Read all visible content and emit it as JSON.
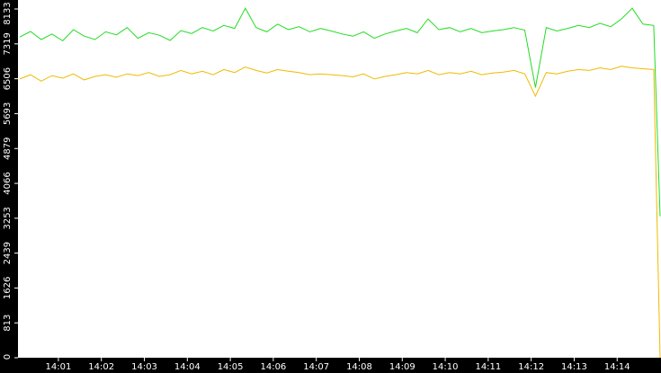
{
  "chart_data": {
    "type": "line",
    "x": [
      0.1,
      0.35,
      0.6,
      0.85,
      1.1,
      1.35,
      1.6,
      1.85,
      2.1,
      2.35,
      2.6,
      2.85,
      3.1,
      3.35,
      3.6,
      3.85,
      4.1,
      4.35,
      4.6,
      4.85,
      5.1,
      5.35,
      5.6,
      5.85,
      6.1,
      6.35,
      6.6,
      6.85,
      7.1,
      7.35,
      7.6,
      7.85,
      8.1,
      8.35,
      8.6,
      8.85,
      9.1,
      9.35,
      9.6,
      9.85,
      10.1,
      10.35,
      10.6,
      10.85,
      11.1,
      11.35,
      11.6,
      11.85,
      12.1,
      12.35,
      12.6,
      12.85,
      13.1,
      13.35,
      13.6,
      13.85,
      14.1,
      14.35,
      14.6,
      14.85,
      15.0
    ],
    "series": [
      {
        "color": "#22dd22",
        "values": [
          7480,
          7610,
          7420,
          7550,
          7390,
          7650,
          7500,
          7420,
          7600,
          7530,
          7700,
          7450,
          7580,
          7520,
          7400,
          7630,
          7560,
          7700,
          7620,
          7750,
          7680,
          8150,
          7700,
          7600,
          7780,
          7650,
          7720,
          7600,
          7680,
          7620,
          7550,
          7500,
          7600,
          7450,
          7550,
          7620,
          7680,
          7580,
          7900,
          7650,
          7700,
          7600,
          7680,
          7580,
          7620,
          7650,
          7700,
          7640,
          6300,
          7700,
          7620,
          7680,
          7750,
          7700,
          7800,
          7720,
          7900,
          8150,
          7780,
          7750,
          3300
        ]
      },
      {
        "color": "#eebb00",
        "values": [
          6500,
          6600,
          6450,
          6580,
          6520,
          6620,
          6480,
          6560,
          6600,
          6540,
          6620,
          6580,
          6650,
          6560,
          6600,
          6700,
          6620,
          6680,
          6600,
          6720,
          6650,
          6780,
          6700,
          6640,
          6720,
          6680,
          6650,
          6600,
          6620,
          6600,
          6580,
          6550,
          6620,
          6500,
          6560,
          6600,
          6650,
          6620,
          6700,
          6600,
          6650,
          6620,
          6680,
          6600,
          6640,
          6660,
          6700,
          6620,
          6100,
          6650,
          6620,
          6680,
          6720,
          6700,
          6760,
          6720,
          6800,
          6760,
          6740,
          6720,
          0
        ]
      }
    ],
    "xlim": [
      0.06,
      15.02
    ],
    "xticks": [
      {
        "value": 1,
        "label": "14:01"
      },
      {
        "value": 2,
        "label": "14:02"
      },
      {
        "value": 3,
        "label": "14:03"
      },
      {
        "value": 4,
        "label": "14:04"
      },
      {
        "value": 5,
        "label": "14:05"
      },
      {
        "value": 6,
        "label": "14:06"
      },
      {
        "value": 7,
        "label": "14:07"
      },
      {
        "value": 8,
        "label": "14:08"
      },
      {
        "value": 9,
        "label": "14:09"
      },
      {
        "value": 10,
        "label": "14:10"
      },
      {
        "value": 11,
        "label": "14:11"
      },
      {
        "value": 12,
        "label": "14:12"
      },
      {
        "value": 13,
        "label": "14:13"
      },
      {
        "value": 14,
        "label": "14:14"
      }
    ],
    "ylim": [
      0,
      8133
    ],
    "yticks": [
      0,
      813,
      1626,
      2439,
      3253,
      4066,
      4879,
      5693,
      6506,
      7319,
      8133
    ]
  }
}
